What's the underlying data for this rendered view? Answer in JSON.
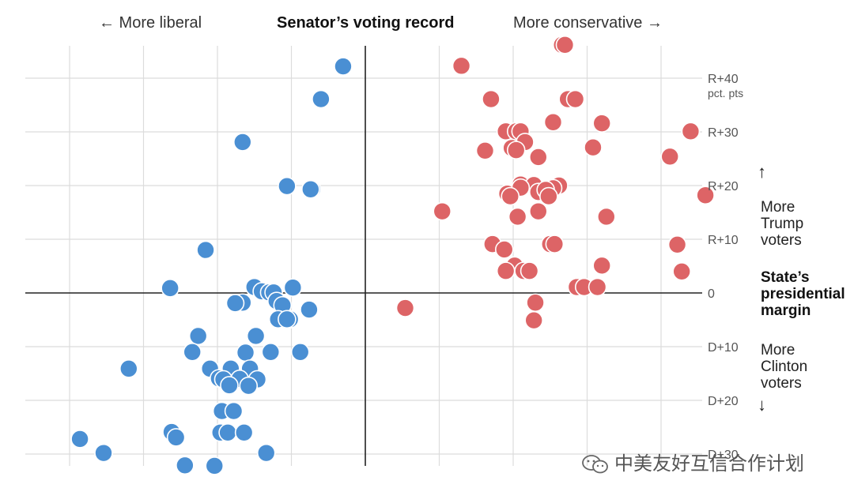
{
  "header": {
    "left_label": "← More liberal",
    "center_label": "Senator’s voting record",
    "right_label": "More conservative →"
  },
  "side_labels": {
    "up_arrow": "↑",
    "trump": [
      "More",
      "Trump",
      "voters"
    ],
    "axis_title": [
      "State’s",
      "presidential",
      "margin"
    ],
    "clinton": [
      "More",
      "Clinton",
      "voters"
    ],
    "down_arrow": "↓"
  },
  "watermark": {
    "icon": "wechat-icon",
    "text": "中美友好互信合作计划"
  },
  "chart_data": {
    "type": "scatter",
    "title": "Senator’s voting record",
    "xlabel_left": "More liberal",
    "xlabel_right": "More conservative",
    "ylabel": "State’s presidential margin",
    "ylim": [
      -30,
      45
    ],
    "y_ticks": [
      {
        "value": 40,
        "label": "R+40",
        "sublabel": "pct. pts"
      },
      {
        "value": 30,
        "label": "R+30"
      },
      {
        "value": 20,
        "label": "R+20"
      },
      {
        "value": 10,
        "label": "R+10"
      },
      {
        "value": 0,
        "label": "0"
      },
      {
        "value": -10,
        "label": "D+10"
      },
      {
        "value": -20,
        "label": "D+20"
      },
      {
        "value": -30,
        "label": "D+30"
      }
    ],
    "x_gridlines": 9,
    "grid": true,
    "colors": {
      "democrat": "#4a8fd3",
      "republican": "#dd6466",
      "grid": "#dcdcdc",
      "axis": "#222222",
      "tick_text": "#555555"
    },
    "series": [
      {
        "party": "democrat",
        "points": [
          [
            -0.15,
            42.2
          ],
          [
            -0.3,
            36.1
          ],
          [
            -0.83,
            28.1
          ],
          [
            -0.53,
            19.9
          ],
          [
            -0.36,
            19.3
          ],
          [
            -0.37,
            19.3
          ],
          [
            -1.08,
            8.0
          ],
          [
            -1.32,
            0.9
          ],
          [
            -0.75,
            1.1
          ],
          [
            -0.7,
            0.3
          ],
          [
            -0.65,
            0.1
          ],
          [
            -0.62,
            0.1
          ],
          [
            -0.49,
            1.0
          ],
          [
            -0.6,
            -1.5
          ],
          [
            -0.83,
            -1.8
          ],
          [
            -0.88,
            -1.9
          ],
          [
            -0.56,
            -2.3
          ],
          [
            -0.38,
            -3.1
          ],
          [
            -0.59,
            -4.9
          ],
          [
            -0.51,
            -4.9
          ],
          [
            -0.53,
            -4.9
          ],
          [
            -1.13,
            -8.0
          ],
          [
            -0.74,
            -8.0
          ],
          [
            -1.17,
            -11.0
          ],
          [
            -0.64,
            -11.0
          ],
          [
            -0.44,
            -11.0
          ],
          [
            -0.81,
            -11.1
          ],
          [
            -1.6,
            -14.1
          ],
          [
            -1.05,
            -14.1
          ],
          [
            -0.91,
            -14.1
          ],
          [
            -0.78,
            -14.1
          ],
          [
            -0.99,
            -15.9
          ],
          [
            -0.85,
            -16.0
          ],
          [
            -0.73,
            -16.1
          ],
          [
            -0.96,
            -16.1
          ],
          [
            -0.92,
            -17.2
          ],
          [
            -0.79,
            -17.3
          ],
          [
            -0.97,
            -22.0
          ],
          [
            -0.89,
            -22.0
          ],
          [
            -1.31,
            -25.9
          ],
          [
            -0.98,
            -26.0
          ],
          [
            -0.93,
            -26.0
          ],
          [
            -0.82,
            -26.0
          ],
          [
            -1.28,
            -26.9
          ],
          [
            -1.93,
            -27.2
          ],
          [
            -1.77,
            -29.8
          ],
          [
            -0.67,
            -29.8
          ],
          [
            -1.22,
            -32.1
          ],
          [
            -1.02,
            -32.2
          ]
        ]
      },
      {
        "party": "republican",
        "points": [
          [
            1.33,
            46.2
          ],
          [
            1.35,
            46.2
          ],
          [
            0.65,
            42.3
          ],
          [
            0.85,
            36.1
          ],
          [
            1.37,
            36.1
          ],
          [
            1.42,
            36.1
          ],
          [
            1.27,
            31.8
          ],
          [
            1.6,
            31.6
          ],
          [
            0.95,
            30.1
          ],
          [
            1.02,
            30.1
          ],
          [
            1.05,
            30.1
          ],
          [
            2.2,
            30.1
          ],
          [
            1.08,
            28.1
          ],
          [
            0.99,
            27.0
          ],
          [
            1.02,
            26.6
          ],
          [
            0.81,
            26.5
          ],
          [
            1.54,
            27.1
          ],
          [
            2.06,
            25.4
          ],
          [
            1.17,
            25.3
          ],
          [
            1.05,
            20.2
          ],
          [
            1.14,
            20.1
          ],
          [
            1.31,
            20.0
          ],
          [
            1.27,
            19.5
          ],
          [
            1.17,
            18.8
          ],
          [
            0.96,
            18.5
          ],
          [
            1.05,
            19.6
          ],
          [
            1.22,
            19.2
          ],
          [
            0.98,
            18.0
          ],
          [
            1.24,
            18.0
          ],
          [
            2.3,
            18.2
          ],
          [
            0.52,
            15.2
          ],
          [
            1.17,
            15.2
          ],
          [
            1.03,
            14.2
          ],
          [
            1.63,
            14.2
          ],
          [
            0.86,
            9.1
          ],
          [
            1.25,
            9.1
          ],
          [
            1.28,
            9.1
          ],
          [
            2.11,
            9.0
          ],
          [
            0.94,
            8.1
          ],
          [
            1.01,
            5.1
          ],
          [
            1.6,
            5.1
          ],
          [
            0.95,
            4.1
          ],
          [
            1.07,
            4.1
          ],
          [
            1.11,
            4.1
          ],
          [
            2.14,
            4.0
          ],
          [
            1.43,
            1.1
          ],
          [
            1.48,
            1.1
          ],
          [
            1.57,
            1.1
          ],
          [
            1.15,
            -1.8
          ],
          [
            0.27,
            -2.8
          ],
          [
            1.14,
            -5.1
          ]
        ]
      }
    ]
  }
}
